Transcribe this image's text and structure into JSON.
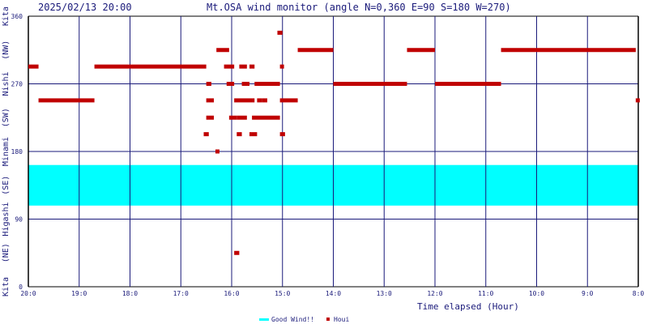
{
  "header": {
    "timestamp": "2025/02/13 20:00",
    "title": "Mt.OSA wind monitor (angle N=0,360 E=90 S=180 W=270)"
  },
  "colors": {
    "axis": "#000000",
    "grid": "#1a1a7a",
    "band": "#00ffff",
    "points": "#c00000",
    "text": "#1a1a7a"
  },
  "chart_data": {
    "type": "scatter",
    "xlabel": "Time elapsed (Hour)",
    "x_ticks": [
      {
        "h": 0,
        "label": "20:0"
      },
      {
        "h": 1,
        "label": "19:0"
      },
      {
        "h": 2,
        "label": "18:0"
      },
      {
        "h": 3,
        "label": "17:0"
      },
      {
        "h": 4,
        "label": "16:0"
      },
      {
        "h": 5,
        "label": "15:0"
      },
      {
        "h": 6,
        "label": "14:0"
      },
      {
        "h": 7,
        "label": "13:0"
      },
      {
        "h": 8,
        "label": "12:0"
      },
      {
        "h": 9,
        "label": "11:0"
      },
      {
        "h": 10,
        "label": "10:0"
      },
      {
        "h": 11,
        "label": "9:0"
      },
      {
        "h": 12,
        "label": "8:0"
      }
    ],
    "xlim": [
      0,
      12
    ],
    "ylim": [
      0,
      360
    ],
    "y_ticks": [
      0,
      90,
      180,
      270,
      360
    ],
    "y_side_labels": [
      "Kita",
      "(NE)",
      "Higashi",
      "(SE)",
      "Minami",
      "(SW)",
      "Nishi",
      "(NW)",
      "Kita"
    ],
    "good_wind_band": [
      108,
      162
    ],
    "legend": [
      {
        "label": "Good Wind!!",
        "type": "band"
      },
      {
        "label": "Houi",
        "type": "point"
      }
    ],
    "series": [
      {
        "name": "Houi",
        "segments": [
          {
            "x0": 0.0,
            "x1": 0.2,
            "y": 293
          },
          {
            "x0": 0.2,
            "x1": 1.3,
            "y": 248
          },
          {
            "x0": 1.3,
            "x1": 3.5,
            "y": 293
          },
          {
            "x0": 3.45,
            "x1": 3.55,
            "y": 203
          },
          {
            "x0": 3.5,
            "x1": 3.6,
            "y": 270
          },
          {
            "x0": 3.5,
            "x1": 3.65,
            "y": 248
          },
          {
            "x0": 3.5,
            "x1": 3.65,
            "y": 225
          },
          {
            "x0": 3.68,
            "x1": 3.72,
            "y": 180
          },
          {
            "x0": 3.7,
            "x1": 3.95,
            "y": 315
          },
          {
            "x0": 3.85,
            "x1": 4.05,
            "y": 293
          },
          {
            "x0": 3.9,
            "x1": 4.05,
            "y": 270
          },
          {
            "x0": 3.95,
            "x1": 4.1,
            "y": 225
          },
          {
            "x0": 4.05,
            "x1": 4.15,
            "y": 45
          },
          {
            "x0": 4.05,
            "x1": 4.45,
            "y": 248
          },
          {
            "x0": 4.1,
            "x1": 4.3,
            "y": 225
          },
          {
            "x0": 4.1,
            "x1": 4.2,
            "y": 203
          },
          {
            "x0": 4.15,
            "x1": 4.3,
            "y": 293
          },
          {
            "x0": 4.2,
            "x1": 4.35,
            "y": 270
          },
          {
            "x0": 4.35,
            "x1": 4.45,
            "y": 293
          },
          {
            "x0": 4.35,
            "x1": 4.5,
            "y": 203
          },
          {
            "x0": 4.4,
            "x1": 4.95,
            "y": 225
          },
          {
            "x0": 4.45,
            "x1": 4.95,
            "y": 270
          },
          {
            "x0": 4.5,
            "x1": 4.6,
            "y": 248
          },
          {
            "x0": 4.6,
            "x1": 4.7,
            "y": 248
          },
          {
            "x0": 4.9,
            "x1": 5.0,
            "y": 338
          },
          {
            "x0": 4.95,
            "x1": 5.0,
            "y": 293
          },
          {
            "x0": 4.95,
            "x1": 5.05,
            "y": 203
          },
          {
            "x0": 4.95,
            "x1": 5.3,
            "y": 248
          },
          {
            "x0": 5.3,
            "x1": 6.0,
            "y": 315
          },
          {
            "x0": 6.0,
            "x1": 7.45,
            "y": 270
          },
          {
            "x0": 7.45,
            "x1": 8.0,
            "y": 315
          },
          {
            "x0": 8.0,
            "x1": 9.3,
            "y": 270
          },
          {
            "x0": 9.3,
            "x1": 11.95,
            "y": 315
          },
          {
            "x0": 11.95,
            "x1": 12.0,
            "y": 248
          }
        ]
      }
    ]
  }
}
